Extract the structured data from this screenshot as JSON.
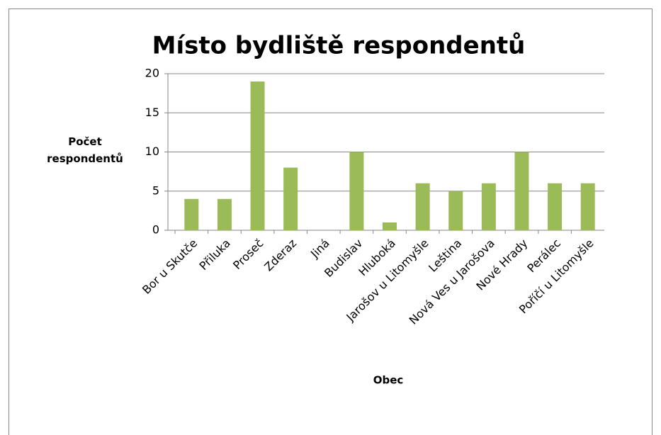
{
  "chart_data": {
    "type": "bar",
    "title": "Místo bydliště respondentů",
    "x_label": "Obec",
    "y_label": "Počet respondentů",
    "categories": [
      "Bor u Skutče",
      "Přiluka",
      "Proseč",
      "Zderaz",
      "Jiná",
      "Budislav",
      "Hluboká",
      "Jarošov u Litomyšle",
      "Leština",
      "Nová Ves u Jarošova",
      "Nové Hrady",
      "Perálec",
      "Poříčí u Litomyšle"
    ],
    "values": [
      4,
      4,
      19,
      8,
      0,
      10,
      1,
      6,
      5,
      6,
      10,
      6,
      6
    ],
    "color": "#9bbb59",
    "ylim": [
      0,
      20
    ],
    "yticks": [
      0,
      5,
      10,
      15,
      20
    ],
    "grid": true
  }
}
